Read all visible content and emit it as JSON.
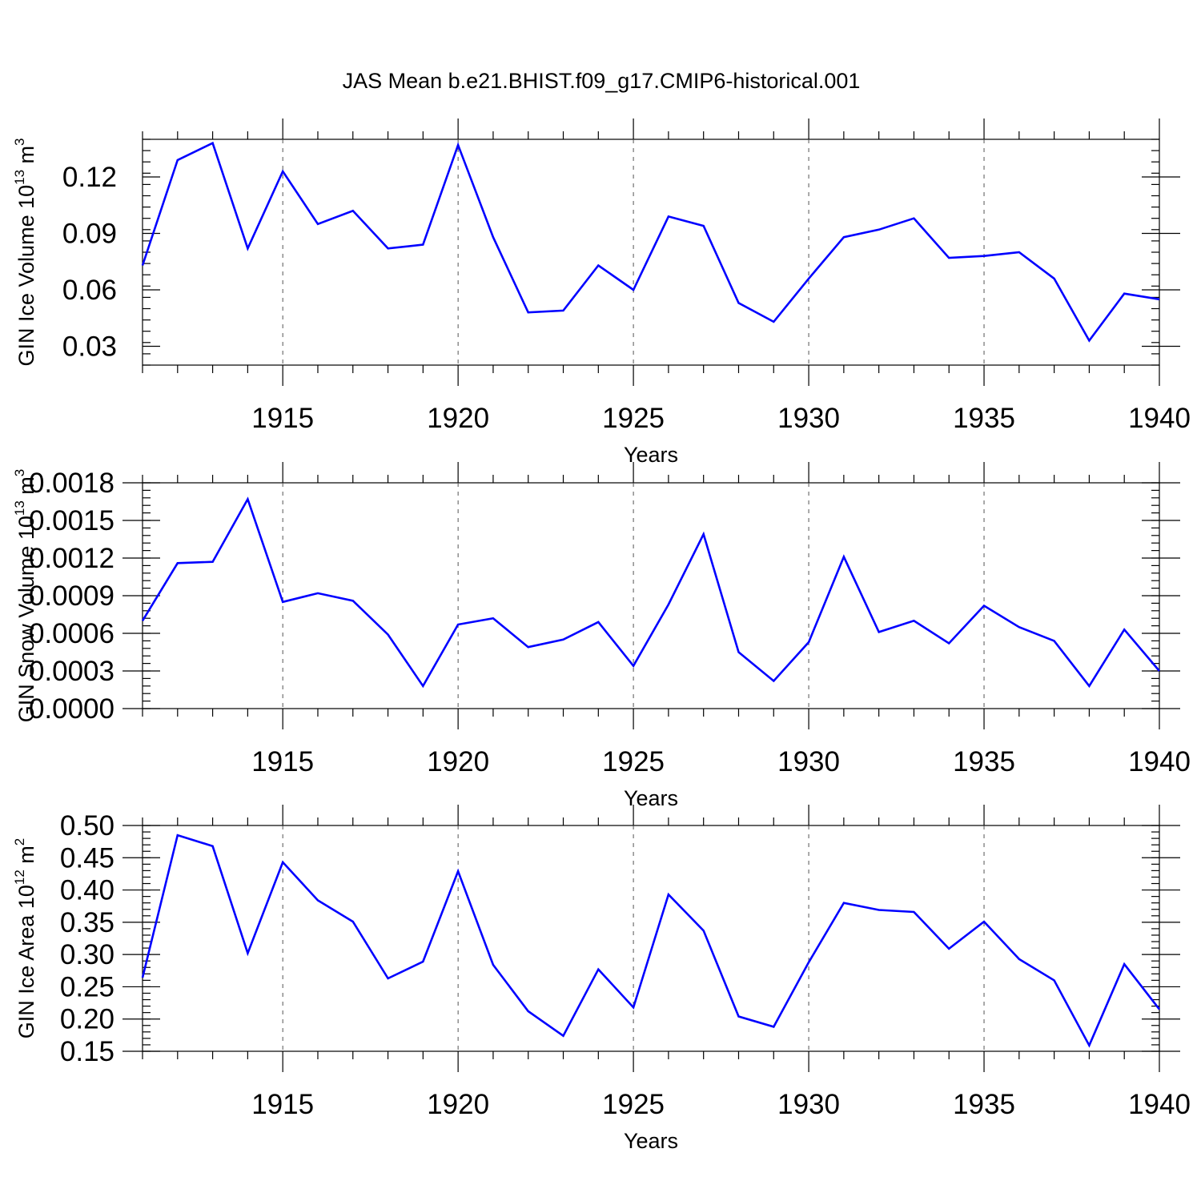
{
  "title": "JAS Mean b.e21.BHIST.f09_g17.CMIP6-historical.001",
  "colors": {
    "series": "#0000ff",
    "axis": "#000000",
    "grid": "#555555"
  },
  "chart_data": [
    {
      "type": "line",
      "xlabel": "Years",
      "ylabel": "GIN Ice Volume 10",
      "ylabel_exp": "13",
      "ylabel_unit": " m",
      "ylabel_unit_exp": "3",
      "xlim": [
        1911,
        1940
      ],
      "ylim": [
        0.02,
        0.14
      ],
      "yticks": [
        "0.03",
        "0.06",
        "0.09",
        "0.12"
      ],
      "xticks": [
        "1915",
        "1920",
        "1925",
        "1930",
        "1935",
        "1940"
      ],
      "grid": "dashed vertical at major x ticks",
      "x": [
        1911,
        1912,
        1913,
        1914,
        1915,
        1916,
        1917,
        1918,
        1919,
        1920,
        1921,
        1922,
        1923,
        1924,
        1925,
        1926,
        1927,
        1928,
        1929,
        1930,
        1931,
        1932,
        1933,
        1934,
        1935,
        1936,
        1937,
        1938,
        1939,
        1940
      ],
      "values": [
        0.073,
        0.129,
        0.138,
        0.082,
        0.123,
        0.095,
        0.102,
        0.082,
        0.084,
        0.137,
        0.088,
        0.048,
        0.049,
        0.073,
        0.06,
        0.099,
        0.094,
        0.053,
        0.043,
        0.066,
        0.088,
        0.092,
        0.098,
        0.077,
        0.078,
        0.08,
        0.066,
        0.033,
        0.058,
        0.055
      ]
    },
    {
      "type": "line",
      "xlabel": "Years",
      "ylabel": "GIN Snow Volume 10",
      "ylabel_exp": "13",
      "ylabel_unit": " m",
      "ylabel_unit_exp": "3",
      "xlim": [
        1911,
        1940
      ],
      "ylim": [
        0,
        0.0018
      ],
      "yticks": [
        "0.0000",
        "0.0003",
        "0.0006",
        "0.0009",
        "0.0012",
        "0.0015",
        "0.0018"
      ],
      "xticks": [
        "1915",
        "1920",
        "1925",
        "1930",
        "1935",
        "1940"
      ],
      "grid": "dashed vertical at major x ticks",
      "x": [
        1911,
        1912,
        1913,
        1914,
        1915,
        1916,
        1917,
        1918,
        1919,
        1920,
        1921,
        1922,
        1923,
        1924,
        1925,
        1926,
        1927,
        1928,
        1929,
        1930,
        1931,
        1932,
        1933,
        1934,
        1935,
        1936,
        1937,
        1938,
        1939,
        1940
      ],
      "values": [
        0.0007,
        0.00116,
        0.00117,
        0.00167,
        0.00085,
        0.00092,
        0.00086,
        0.00059,
        0.00018,
        0.00067,
        0.00072,
        0.00049,
        0.00055,
        0.00069,
        0.00034,
        0.00083,
        0.00139,
        0.00045,
        0.00022,
        0.00053,
        0.00121,
        0.00061,
        0.0007,
        0.00052,
        0.00082,
        0.00065,
        0.00054,
        0.00018,
        0.00063,
        0.0003
      ]
    },
    {
      "type": "line",
      "xlabel": "Years",
      "ylabel": "GIN Ice Area 10",
      "ylabel_exp": "12",
      "ylabel_unit": " m",
      "ylabel_unit_exp": "2",
      "xlim": [
        1911,
        1940
      ],
      "ylim": [
        0.15,
        0.5
      ],
      "yticks": [
        "0.15",
        "0.20",
        "0.25",
        "0.30",
        "0.35",
        "0.40",
        "0.45",
        "0.50"
      ],
      "xticks": [
        "1915",
        "1920",
        "1925",
        "1930",
        "1935",
        "1940"
      ],
      "grid": "dashed vertical at major x ticks",
      "x": [
        1911,
        1912,
        1913,
        1914,
        1915,
        1916,
        1917,
        1918,
        1919,
        1920,
        1921,
        1922,
        1923,
        1924,
        1925,
        1926,
        1927,
        1928,
        1929,
        1930,
        1931,
        1932,
        1933,
        1934,
        1935,
        1936,
        1937,
        1938,
        1939,
        1940
      ],
      "values": [
        0.264,
        0.485,
        0.468,
        0.302,
        0.443,
        0.384,
        0.351,
        0.263,
        0.289,
        0.429,
        0.284,
        0.212,
        0.174,
        0.277,
        0.218,
        0.393,
        0.337,
        0.204,
        0.188,
        0.288,
        0.38,
        0.369,
        0.366,
        0.309,
        0.351,
        0.293,
        0.26,
        0.159,
        0.285,
        0.215
      ]
    }
  ]
}
